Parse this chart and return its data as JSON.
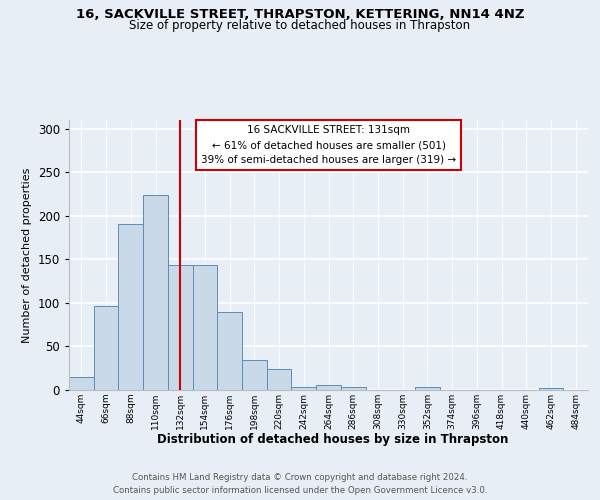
{
  "title1": "16, SACKVILLE STREET, THRAPSTON, KETTERING, NN14 4NZ",
  "title2": "Size of property relative to detached houses in Thrapston",
  "xlabel": "Distribution of detached houses by size in Thrapston",
  "ylabel": "Number of detached properties",
  "bar_labels": [
    "44sqm",
    "66sqm",
    "88sqm",
    "110sqm",
    "132sqm",
    "154sqm",
    "176sqm",
    "198sqm",
    "220sqm",
    "242sqm",
    "264sqm",
    "286sqm",
    "308sqm",
    "330sqm",
    "352sqm",
    "374sqm",
    "396sqm",
    "418sqm",
    "440sqm",
    "462sqm",
    "484sqm"
  ],
  "bar_values": [
    15,
    96,
    191,
    224,
    143,
    143,
    89,
    35,
    24,
    4,
    6,
    3,
    0,
    0,
    3,
    0,
    0,
    0,
    0,
    2,
    0
  ],
  "bar_color": "#c9d9e8",
  "bar_edge_color": "#5b8db8",
  "vline_x_index": 4,
  "vline_color": "#cc0000",
  "annotation_text": "16 SACKVILLE STREET: 131sqm\n← 61% of detached houses are smaller (501)\n39% of semi-detached houses are larger (319) →",
  "annotation_box_color": "#ffffff",
  "annotation_box_edge": "#cc0000",
  "footnote": "Contains HM Land Registry data © Crown copyright and database right 2024.\nContains public sector information licensed under the Open Government Licence v3.0.",
  "ylim": [
    0,
    310
  ],
  "yticks": [
    0,
    50,
    100,
    150,
    200,
    250,
    300
  ],
  "bg_color": "#e8eef5",
  "plot_bg_color": "#e8eef5"
}
